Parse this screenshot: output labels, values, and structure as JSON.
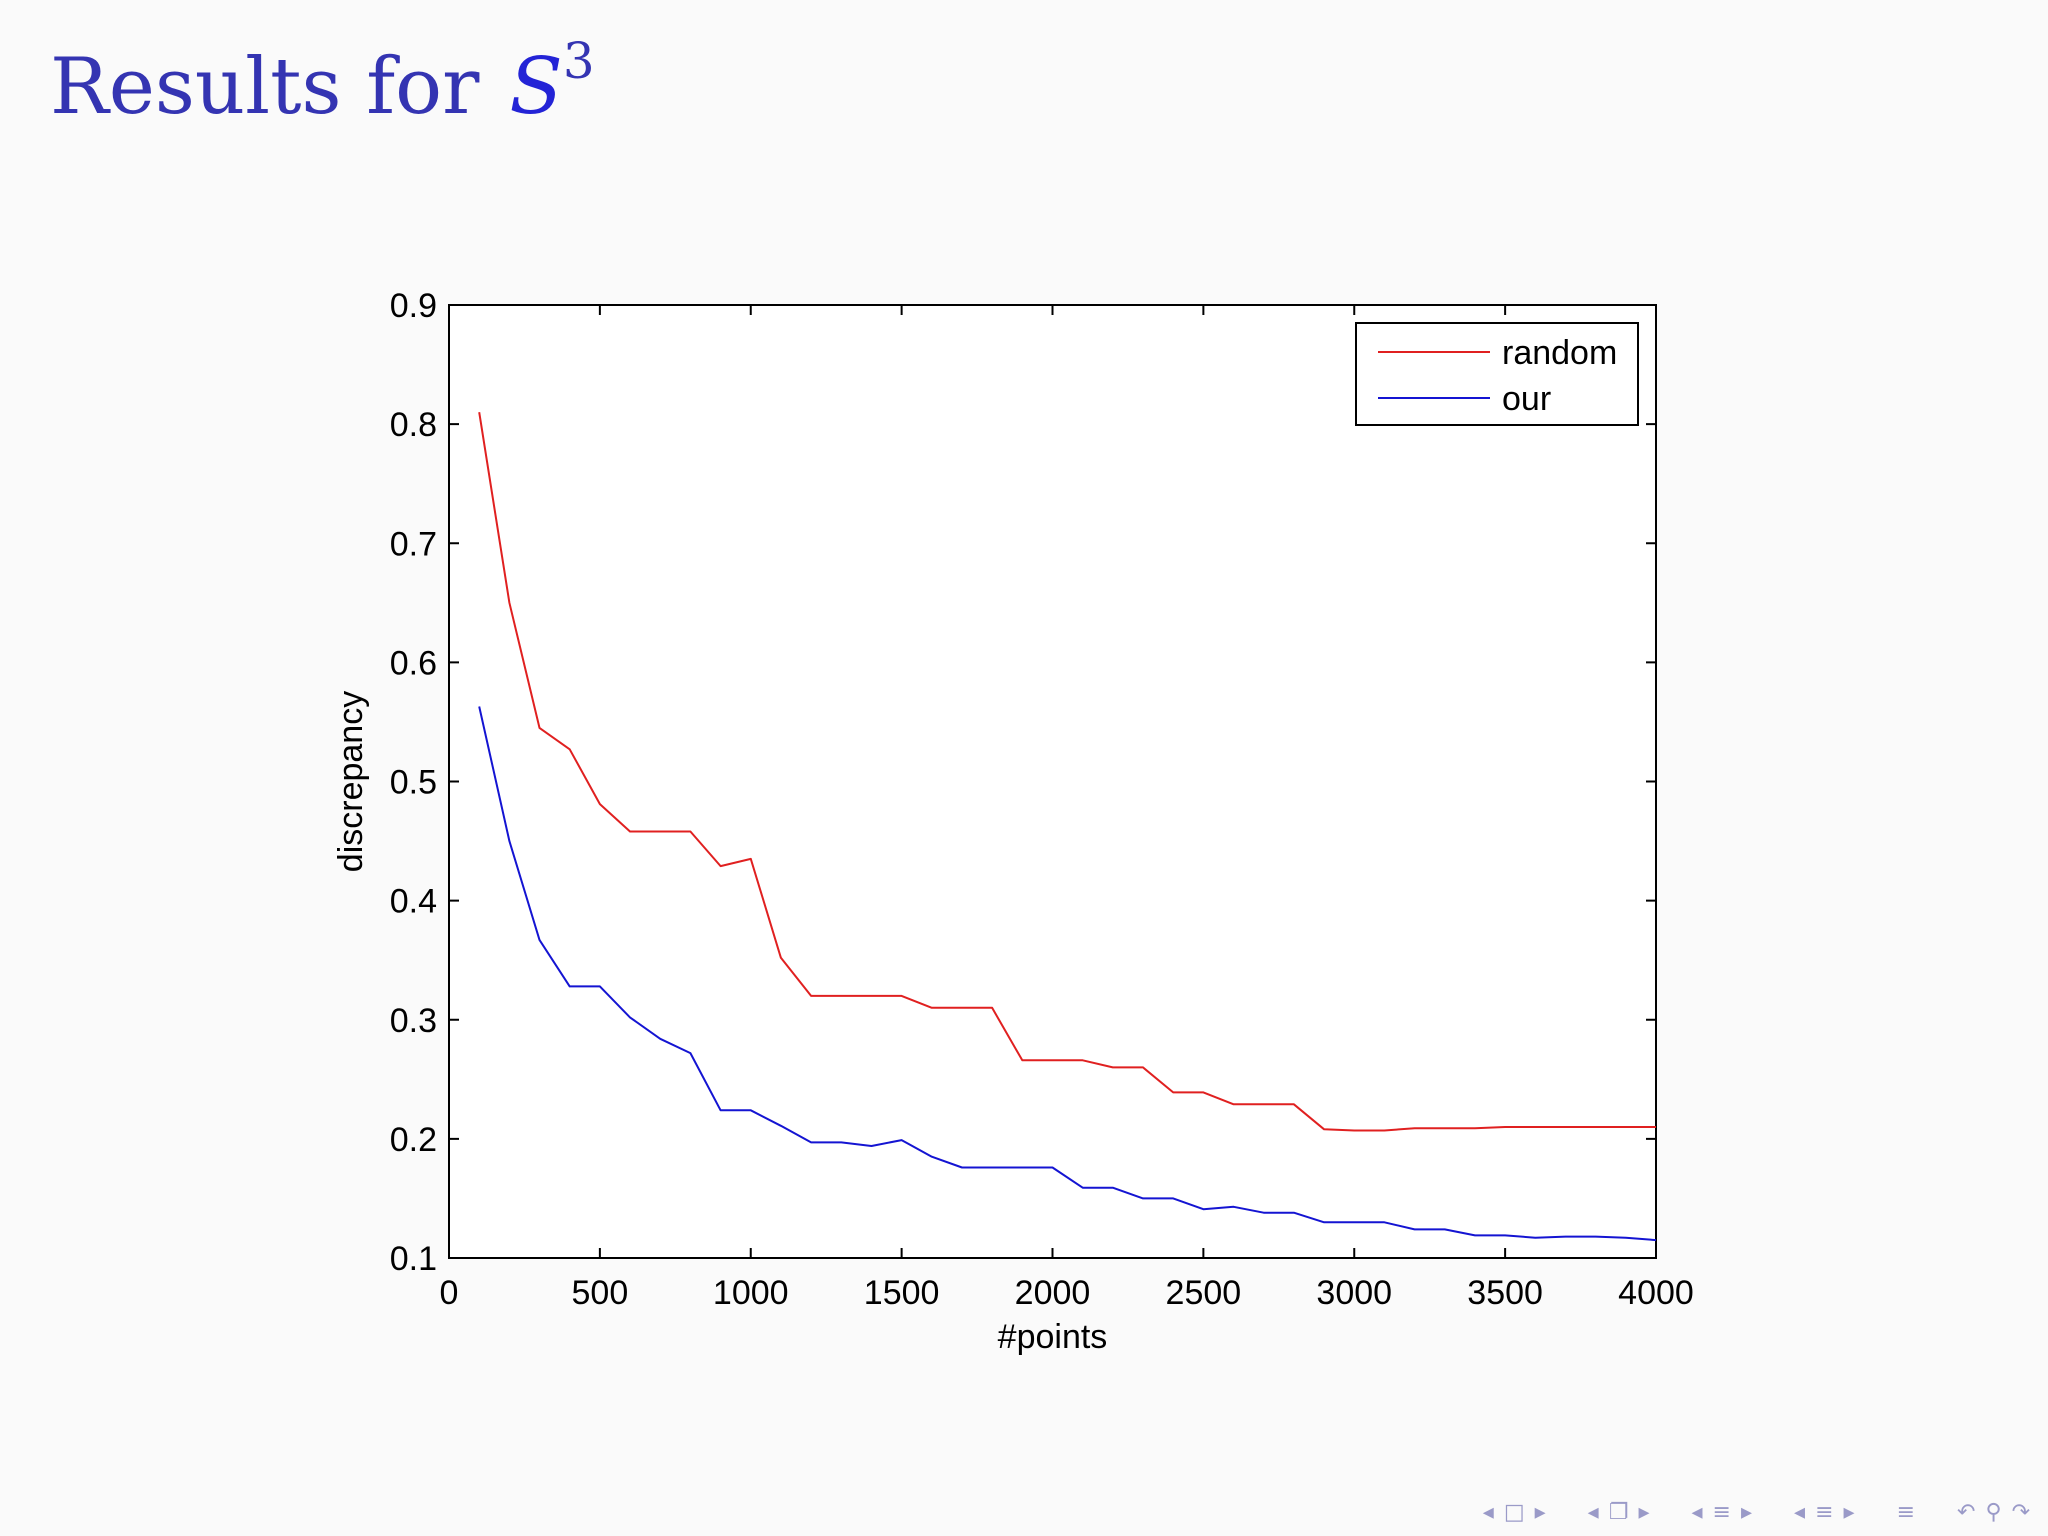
{
  "slide": {
    "title_text": "Results for",
    "title_symbol": "S",
    "title_superscript": "3"
  },
  "navigation": {
    "icons": [
      "arrow-left",
      "frame",
      "arrow-right",
      "arrow-left",
      "subsection",
      "arrow-right",
      "arrow-left",
      "section",
      "arrow-right",
      "arrow-left",
      "section",
      "arrow-right",
      "appendix",
      "undo",
      "search",
      "redo"
    ]
  },
  "colors": {
    "title": "#3434b2",
    "random": "#e02020",
    "our": "#1414d2",
    "nav": "#9a9ac8"
  },
  "chart_data": {
    "type": "line",
    "xlabel": "#points",
    "ylabel": "discrepancy",
    "xlim": [
      0,
      4000
    ],
    "ylim": [
      0.1,
      0.9
    ],
    "xticks": [
      "0",
      "500",
      "1000",
      "1500",
      "2000",
      "2500",
      "3000",
      "3500",
      "4000"
    ],
    "yticks": [
      "0.1",
      "0.2",
      "0.3",
      "0.4",
      "0.5",
      "0.6",
      "0.7",
      "0.8",
      "0.9"
    ],
    "legend_position": "top-right",
    "grid": false,
    "series": [
      {
        "name": "random",
        "color": "#e02020",
        "x": [
          100,
          200,
          300,
          400,
          500,
          600,
          700,
          800,
          900,
          1000,
          1100,
          1200,
          1300,
          1400,
          1500,
          1600,
          1700,
          1800,
          1900,
          2000,
          2100,
          2200,
          2300,
          2400,
          2500,
          2600,
          2700,
          2800,
          2900,
          3000,
          3100,
          3200,
          3300,
          3400,
          3500,
          3600,
          3700,
          3800,
          3900,
          4000
        ],
        "y": [
          0.81,
          0.65,
          0.545,
          0.527,
          0.481,
          0.458,
          0.458,
          0.458,
          0.429,
          0.435,
          0.352,
          0.32,
          0.32,
          0.32,
          0.32,
          0.31,
          0.31,
          0.31,
          0.266,
          0.266,
          0.266,
          0.26,
          0.26,
          0.239,
          0.239,
          0.229,
          0.229,
          0.229,
          0.208,
          0.207,
          0.207,
          0.209,
          0.209,
          0.209,
          0.21,
          0.21,
          0.21,
          0.21,
          0.21,
          0.21
        ]
      },
      {
        "name": "our",
        "color": "#1414d2",
        "x": [
          100,
          200,
          300,
          400,
          500,
          600,
          700,
          800,
          900,
          1000,
          1100,
          1200,
          1300,
          1400,
          1500,
          1600,
          1700,
          1800,
          1900,
          2000,
          2100,
          2200,
          2300,
          2400,
          2500,
          2600,
          2700,
          2800,
          2900,
          3000,
          3100,
          3200,
          3300,
          3400,
          3500,
          3600,
          3700,
          3800,
          3900,
          4000
        ],
        "y": [
          0.563,
          0.45,
          0.367,
          0.328,
          0.328,
          0.302,
          0.284,
          0.272,
          0.224,
          0.224,
          0.211,
          0.197,
          0.197,
          0.194,
          0.199,
          0.185,
          0.176,
          0.176,
          0.176,
          0.176,
          0.159,
          0.159,
          0.15,
          0.15,
          0.141,
          0.143,
          0.138,
          0.138,
          0.13,
          0.13,
          0.13,
          0.124,
          0.124,
          0.119,
          0.119,
          0.117,
          0.118,
          0.118,
          0.117,
          0.115
        ]
      }
    ]
  }
}
